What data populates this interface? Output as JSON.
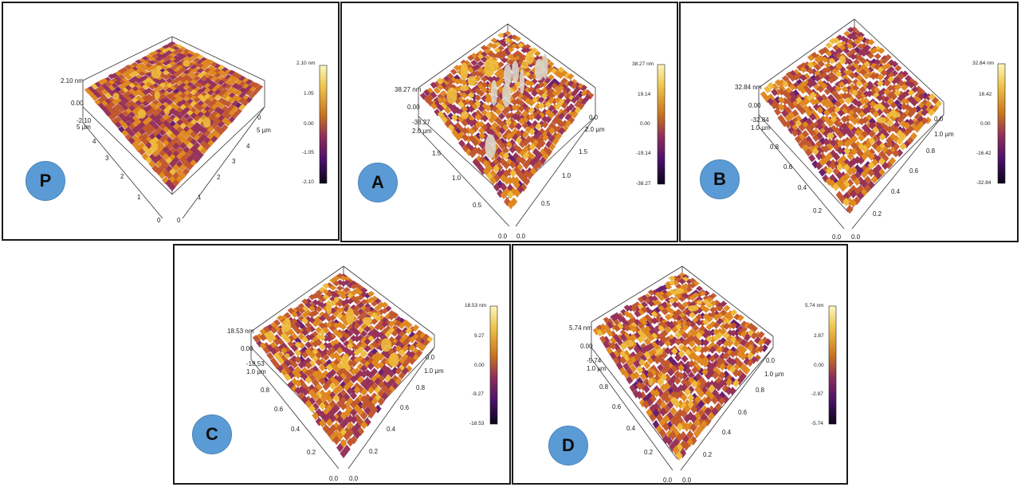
{
  "colormap": [
    "#120826",
    "#3b0f5c",
    "#6b1f6e",
    "#9a3356",
    "#c45a2c",
    "#e08a1f",
    "#eebb3c",
    "#f7ec9a"
  ],
  "panels": [
    {
      "id": "p",
      "label": "P",
      "height_max": "2.10 nm",
      "height_zero": "0.00",
      "height_min": "-2.10",
      "axis_unit": "5 µm",
      "left_ticks": [
        "4",
        "3",
        "2",
        "1"
      ],
      "right_ticks": [
        "4",
        "3",
        "2",
        "1"
      ],
      "origin_left": "0",
      "origin_right": "0",
      "far_tick": "0",
      "colorbar": [
        "2.10 nm",
        "1.05",
        "0.00",
        "-1.05",
        "-2.10"
      ],
      "roughness": 0.12,
      "spikes": 0.25
    },
    {
      "id": "a",
      "label": "A",
      "height_max": "38.27 nm",
      "height_zero": "0.00",
      "height_min": "-38.27",
      "axis_unit": "2.0 µm",
      "left_ticks": [
        "1.5",
        "1.0",
        "0.5"
      ],
      "right_ticks": [
        "1.5",
        "1.0",
        "0.5"
      ],
      "origin_left": "0.0",
      "origin_right": "0.0",
      "far_tick": "0.0",
      "colorbar": [
        "38.27 nm",
        "19.14",
        "0.00",
        "-19.14",
        "-38.27"
      ],
      "roughness": 0.45,
      "spikes": 0.9
    },
    {
      "id": "b",
      "label": "B",
      "height_max": "32.84 nm",
      "height_zero": "0.00",
      "height_min": "-32.84",
      "axis_unit": "1.0 µm",
      "left_ticks": [
        "0.8",
        "0.6",
        "0.4",
        "0.2"
      ],
      "right_ticks": [
        "0.8",
        "0.6",
        "0.4",
        "0.2"
      ],
      "origin_left": "0.0",
      "origin_right": "0.0",
      "far_tick": "0.0",
      "colorbar": [
        "32.84 nm",
        "16.42",
        "0.00",
        "-16.42",
        "-32.84"
      ],
      "roughness": 0.5,
      "spikes": 0.1
    },
    {
      "id": "c",
      "label": "C",
      "height_max": "18.53 nm",
      "height_zero": "0.00",
      "height_min": "-18.53",
      "axis_unit": "1.0 µm",
      "left_ticks": [
        "0.8",
        "0.6",
        "0.4",
        "0.2"
      ],
      "right_ticks": [
        "0.8",
        "0.6",
        "0.4",
        "0.2"
      ],
      "origin_left": "0.0",
      "origin_right": "0.0",
      "far_tick": "0.0",
      "colorbar": [
        "18.53 nm",
        "9.27",
        "0.00",
        "-9.27",
        "-18.53"
      ],
      "roughness": 0.4,
      "spikes": 0.6
    },
    {
      "id": "d",
      "label": "D",
      "height_max": "5.74 nm",
      "height_zero": "0.00",
      "height_min": "-5.74",
      "axis_unit": "1.0 µm",
      "left_ticks": [
        "0.8",
        "0.6",
        "0.4",
        "0.2"
      ],
      "right_ticks": [
        "0.8",
        "0.6",
        "0.4",
        "0.2"
      ],
      "origin_left": "0.0",
      "origin_right": "0.0",
      "far_tick": "0.0",
      "colorbar": [
        "5.74 nm",
        "2.87",
        "0.00",
        "-2.87",
        "-5.74"
      ],
      "roughness": 0.5,
      "spikes": 0.15
    }
  ]
}
